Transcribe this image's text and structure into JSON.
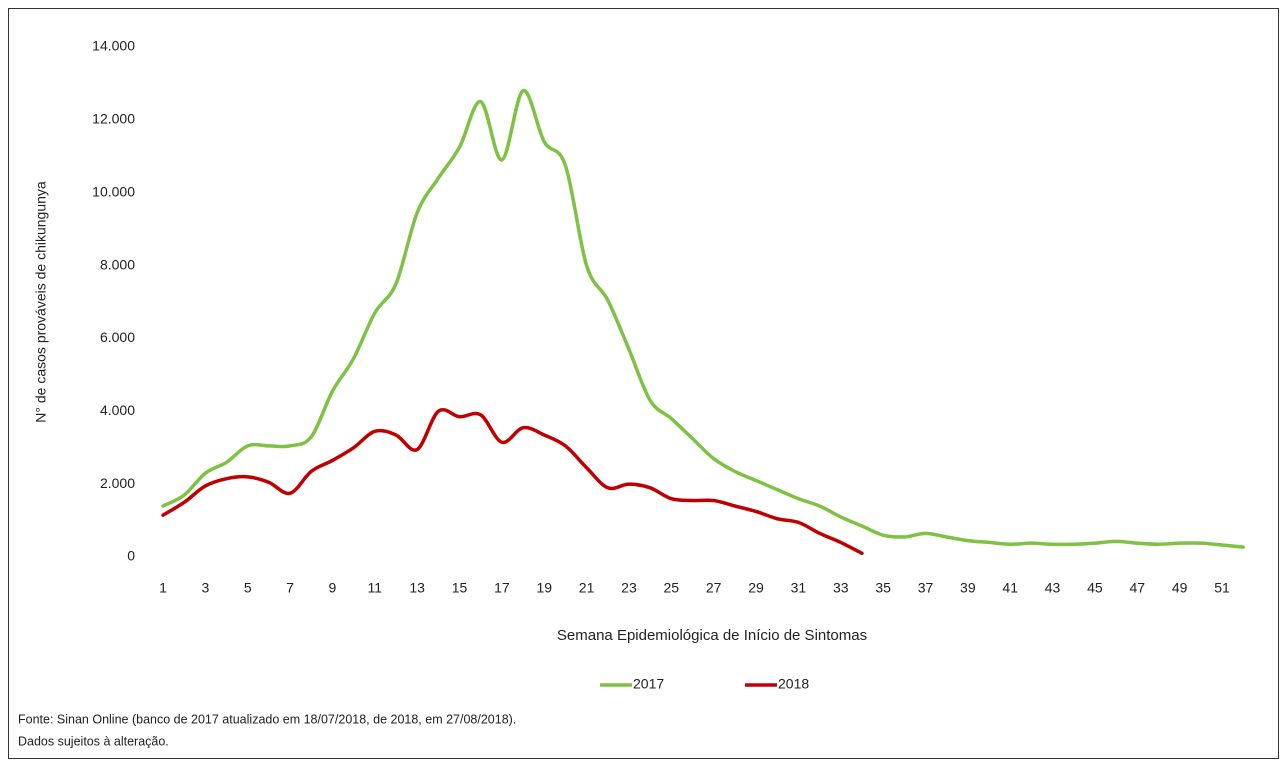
{
  "chart_data": {
    "type": "line",
    "y_label": "N° de casos prováveis de chikungunya",
    "x_label": "Semana Epidemiológica de Início de Sintomas",
    "categories": [
      1,
      null,
      3,
      null,
      5,
      null,
      7,
      null,
      9,
      null,
      11,
      null,
      13,
      null,
      15,
      null,
      17,
      null,
      19,
      null,
      21,
      null,
      23,
      null,
      25,
      null,
      27,
      null,
      29,
      null,
      31,
      null,
      33,
      null,
      35,
      null,
      37,
      null,
      39,
      null,
      41,
      null,
      43,
      null,
      45,
      null,
      47,
      null,
      49,
      null,
      51,
      null
    ],
    "series": [
      {
        "name": "2017",
        "color": "#7dc242",
        "values": [
          1400,
          1700,
          2300,
          2600,
          3050,
          3050,
          3050,
          3300,
          4550,
          5450,
          6700,
          7500,
          9450,
          10400,
          11250,
          12500,
          10900,
          12800,
          11400,
          10750,
          8000,
          7050,
          5700,
          4300,
          3800,
          3250,
          2700,
          2350,
          2100,
          1850,
          1600,
          1400,
          1100,
          850,
          600,
          550,
          650,
          550,
          450,
          400,
          350,
          380,
          350,
          350,
          380,
          430,
          380,
          350,
          380,
          380,
          330,
          270
        ]
      },
      {
        "name": "2018",
        "color": "#c00000",
        "values": [
          1150,
          1500,
          1950,
          2150,
          2200,
          2050,
          1750,
          2350,
          2650,
          3000,
          3450,
          3350,
          2950,
          4000,
          3850,
          3900,
          3150,
          3550,
          3350,
          3050,
          2450,
          1900,
          2000,
          1900,
          1600,
          1550,
          1550,
          1400,
          1250,
          1050,
          950,
          650,
          400,
          100,
          null,
          null,
          null,
          null,
          null,
          null,
          null,
          null,
          null,
          null,
          null,
          null,
          null,
          null,
          null,
          null,
          null,
          null
        ]
      }
    ],
    "ylim": [
      0,
      14000
    ],
    "yticks": [
      0,
      {
        "value": 2000,
        "label": "2.000"
      },
      {
        "value": 4000,
        "label": "4.000"
      },
      {
        "value": 6000,
        "label": "6.000"
      },
      {
        "value": 8000,
        "label": "8.000"
      },
      {
        "value": 10000,
        "label": "10.000"
      },
      {
        "value": 12000,
        "label": "12.000"
      },
      {
        "value": 14000,
        "label": "14.000"
      }
    ],
    "grid": false,
    "legend": "bottom",
    "notes": [
      "Fonte: Sinan Online (banco de 2017 atualizado em 18/07/2018, de 2018, em 27/08/2018).",
      "Dados sujeitos à alteração."
    ]
  }
}
